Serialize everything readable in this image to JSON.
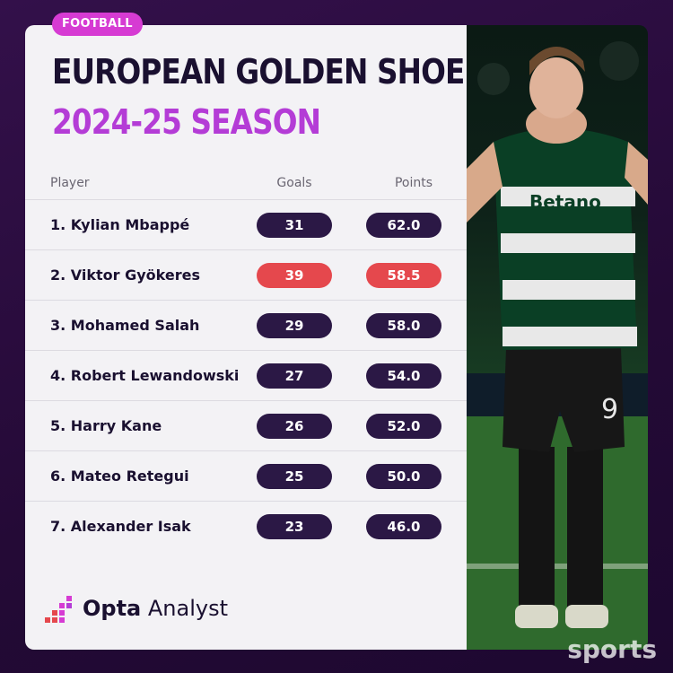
{
  "badge": "FOOTBALL",
  "title": "EUROPEAN GOLDEN SHOE",
  "subtitle": "2024-25 SEASON",
  "headers": {
    "player": "Player",
    "goals": "Goals",
    "points": "Points"
  },
  "rows": [
    {
      "player": "1. Kylian Mbappé",
      "goals": "31",
      "points": "62.0",
      "highlight": false
    },
    {
      "player": "2. Viktor Gyökeres",
      "goals": "39",
      "points": "58.5",
      "highlight": true
    },
    {
      "player": "3. Mohamed Salah",
      "goals": "29",
      "points": "58.0",
      "highlight": false
    },
    {
      "player": "4. Robert Lewandowski",
      "goals": "27",
      "points": "54.0",
      "highlight": false
    },
    {
      "player": "5. Harry Kane",
      "goals": "26",
      "points": "52.0",
      "highlight": false
    },
    {
      "player": "6. Mateo Retegui",
      "goals": "25",
      "points": "50.0",
      "highlight": false
    },
    {
      "player": "7. Alexander Isak",
      "goals": "23",
      "points": "46.0",
      "highlight": false
    }
  ],
  "logo": {
    "bold": "Opta",
    "light": " Analyst"
  },
  "jersey": {
    "sponsor": "Betano",
    "number": "9"
  },
  "watermark": "sports",
  "colors": {
    "accent_pink": "#d63bd3",
    "purple_text": "#b43cd6",
    "pill_dark": "#2b1845",
    "pill_highlight": "#e5484d",
    "background": "#2a0d3c"
  }
}
